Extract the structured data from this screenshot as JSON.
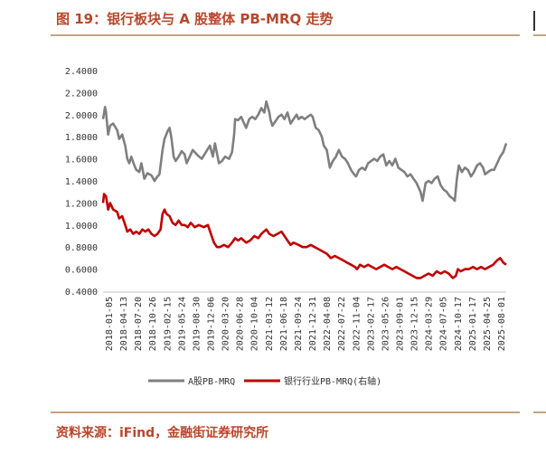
{
  "figure": {
    "title": "图 19：银行板块与 A 股整体 PB-MRQ 走势",
    "source": "资料来源：iFind，金融街证券研究所"
  },
  "chart_data": {
    "type": "line",
    "y_ticks": [
      "2.4000",
      "2.2000",
      "2.0000",
      "1.8000",
      "1.6000",
      "1.4000",
      "1.2000",
      "1.0000",
      "0.8000",
      "0.6000",
      "0.4000"
    ],
    "ylim": [
      0.4,
      2.4
    ],
    "x_range": [
      "2018-01-05",
      "2025-09-05"
    ],
    "x_ticks": [
      "2018-01-05",
      "2018-04-13",
      "2018-07-20",
      "2018-10-26",
      "2019-02-15",
      "2019-05-24",
      "2019-08-30",
      "2019-12-06",
      "2020-03-20",
      "2020-06-28",
      "2020-10-04",
      "2021-03-12",
      "2021-06-18",
      "2021-09-24",
      "2021-12-31",
      "2022-04-08",
      "2022-07-22",
      "2022-11-04",
      "2023-02-17",
      "2023-05-26",
      "2023-09-01",
      "2023-12-15",
      "2024-03-29",
      "2024-07-05",
      "2024-10-17",
      "2025-01-17",
      "2025-04-25",
      "2025-08-01"
    ],
    "grid": false,
    "legend_position": "bottom",
    "series": [
      {
        "name": "A股PB-MRQ",
        "color": "#7f7f7f",
        "points": [
          [
            "2018-01-05",
            1.96
          ],
          [
            "2018-01-19",
            2.07
          ],
          [
            "2018-01-26",
            2.02
          ],
          [
            "2018-02-09",
            1.82
          ],
          [
            "2018-02-23",
            1.9
          ],
          [
            "2018-03-16",
            1.92
          ],
          [
            "2018-04-13",
            1.86
          ],
          [
            "2018-04-27",
            1.78
          ],
          [
            "2018-05-18",
            1.82
          ],
          [
            "2018-06-08",
            1.72
          ],
          [
            "2018-06-22",
            1.6
          ],
          [
            "2018-07-06",
            1.56
          ],
          [
            "2018-07-20",
            1.62
          ],
          [
            "2018-08-10",
            1.54
          ],
          [
            "2018-08-24",
            1.5
          ],
          [
            "2018-09-14",
            1.48
          ],
          [
            "2018-09-28",
            1.56
          ],
          [
            "2018-10-19",
            1.42
          ],
          [
            "2018-11-09",
            1.47
          ],
          [
            "2018-12-07",
            1.45
          ],
          [
            "2018-12-28",
            1.4
          ],
          [
            "2019-01-18",
            1.44
          ],
          [
            "2019-02-01",
            1.46
          ],
          [
            "2019-02-22",
            1.68
          ],
          [
            "2019-03-08",
            1.78
          ],
          [
            "2019-03-29",
            1.85
          ],
          [
            "2019-04-12",
            1.88
          ],
          [
            "2019-04-26",
            1.78
          ],
          [
            "2019-05-10",
            1.62
          ],
          [
            "2019-05-24",
            1.58
          ],
          [
            "2019-06-14",
            1.62
          ],
          [
            "2019-07-05",
            1.67
          ],
          [
            "2019-07-26",
            1.64
          ],
          [
            "2019-08-09",
            1.56
          ],
          [
            "2019-08-30",
            1.62
          ],
          [
            "2019-09-20",
            1.68
          ],
          [
            "2019-10-25",
            1.63
          ],
          [
            "2019-11-22",
            1.6
          ],
          [
            "2019-12-20",
            1.66
          ],
          [
            "2020-01-17",
            1.72
          ],
          [
            "2020-02-07",
            1.62
          ],
          [
            "2020-02-21",
            1.74
          ],
          [
            "2020-03-20",
            1.56
          ],
          [
            "2020-04-10",
            1.58
          ],
          [
            "2020-05-01",
            1.62
          ],
          [
            "2020-05-29",
            1.6
          ],
          [
            "2020-06-19",
            1.66
          ],
          [
            "2020-07-03",
            1.82
          ],
          [
            "2020-07-10",
            1.96
          ],
          [
            "2020-07-31",
            1.95
          ],
          [
            "2020-08-21",
            1.98
          ],
          [
            "2020-09-11",
            1.92
          ],
          [
            "2020-09-25",
            1.88
          ],
          [
            "2020-10-16",
            1.96
          ],
          [
            "2020-11-06",
            1.98
          ],
          [
            "2020-11-27",
            1.96
          ],
          [
            "2020-12-18",
            2.0
          ],
          [
            "2021-01-08",
            2.06
          ],
          [
            "2021-01-29",
            2.02
          ],
          [
            "2021-02-12",
            2.12
          ],
          [
            "2021-03-05",
            2.02
          ],
          [
            "2021-03-12",
            1.96
          ],
          [
            "2021-03-26",
            1.9
          ],
          [
            "2021-04-16",
            1.94
          ],
          [
            "2021-05-07",
            1.98
          ],
          [
            "2021-05-28",
            2.0
          ],
          [
            "2021-06-18",
            1.96
          ],
          [
            "2021-07-09",
            2.02
          ],
          [
            "2021-07-30",
            1.92
          ],
          [
            "2021-08-20",
            1.96
          ],
          [
            "2021-09-10",
            2.0
          ],
          [
            "2021-09-24",
            1.96
          ],
          [
            "2021-10-15",
            1.98
          ],
          [
            "2021-11-05",
            1.96
          ],
          [
            "2021-11-26",
            1.98
          ],
          [
            "2021-12-17",
            2.0
          ],
          [
            "2021-12-31",
            1.98
          ],
          [
            "2022-01-21",
            1.88
          ],
          [
            "2022-02-11",
            1.86
          ],
          [
            "2022-03-04",
            1.8
          ],
          [
            "2022-03-18",
            1.72
          ],
          [
            "2022-04-08",
            1.68
          ],
          [
            "2022-04-29",
            1.52
          ],
          [
            "2022-05-20",
            1.58
          ],
          [
            "2022-06-10",
            1.62
          ],
          [
            "2022-07-01",
            1.68
          ],
          [
            "2022-07-22",
            1.62
          ],
          [
            "2022-08-12",
            1.6
          ],
          [
            "2022-09-02",
            1.56
          ],
          [
            "2022-09-23",
            1.5
          ],
          [
            "2022-10-14",
            1.46
          ],
          [
            "2022-10-28",
            1.44
          ],
          [
            "2022-11-18",
            1.5
          ],
          [
            "2022-12-09",
            1.52
          ],
          [
            "2022-12-30",
            1.5
          ],
          [
            "2023-01-20",
            1.56
          ],
          [
            "2023-02-10",
            1.58
          ],
          [
            "2023-03-03",
            1.6
          ],
          [
            "2023-03-24",
            1.58
          ],
          [
            "2023-04-14",
            1.62
          ],
          [
            "2023-05-05",
            1.64
          ],
          [
            "2023-05-26",
            1.54
          ],
          [
            "2023-06-16",
            1.58
          ],
          [
            "2023-07-07",
            1.54
          ],
          [
            "2023-07-28",
            1.6
          ],
          [
            "2023-08-18",
            1.52
          ],
          [
            "2023-09-08",
            1.5
          ],
          [
            "2023-09-29",
            1.48
          ],
          [
            "2023-10-20",
            1.44
          ],
          [
            "2023-11-10",
            1.46
          ],
          [
            "2023-12-01",
            1.42
          ],
          [
            "2023-12-22",
            1.38
          ],
          [
            "2024-01-19",
            1.3
          ],
          [
            "2024-02-02",
            1.22
          ],
          [
            "2024-02-23",
            1.38
          ],
          [
            "2024-03-15",
            1.4
          ],
          [
            "2024-04-05",
            1.38
          ],
          [
            "2024-04-26",
            1.42
          ],
          [
            "2024-05-17",
            1.44
          ],
          [
            "2024-06-07",
            1.36
          ],
          [
            "2024-06-28",
            1.32
          ],
          [
            "2024-07-19",
            1.3
          ],
          [
            "2024-08-09",
            1.26
          ],
          [
            "2024-08-30",
            1.24
          ],
          [
            "2024-09-13",
            1.22
          ],
          [
            "2024-09-27",
            1.42
          ],
          [
            "2024-10-11",
            1.54
          ],
          [
            "2024-11-01",
            1.48
          ],
          [
            "2024-11-22",
            1.52
          ],
          [
            "2024-12-13",
            1.5
          ],
          [
            "2025-01-03",
            1.44
          ],
          [
            "2025-01-24",
            1.48
          ],
          [
            "2025-02-14",
            1.54
          ],
          [
            "2025-03-07",
            1.56
          ],
          [
            "2025-03-28",
            1.52
          ],
          [
            "2025-04-11",
            1.46
          ],
          [
            "2025-05-02",
            1.48
          ],
          [
            "2025-05-23",
            1.5
          ],
          [
            "2025-06-13",
            1.5
          ],
          [
            "2025-07-04",
            1.56
          ],
          [
            "2025-07-25",
            1.62
          ],
          [
            "2025-08-15",
            1.66
          ],
          [
            "2025-09-05",
            1.74
          ]
        ]
      },
      {
        "name": "银行行业PB-MRQ(右轴)",
        "color": "#c00000",
        "points": [
          [
            "2018-01-05",
            1.2
          ],
          [
            "2018-01-12",
            1.28
          ],
          [
            "2018-01-26",
            1.26
          ],
          [
            "2018-02-09",
            1.14
          ],
          [
            "2018-02-23",
            1.2
          ],
          [
            "2018-03-16",
            1.14
          ],
          [
            "2018-04-13",
            1.12
          ],
          [
            "2018-04-27",
            1.06
          ],
          [
            "2018-05-18",
            1.08
          ],
          [
            "2018-06-08",
            1.0
          ],
          [
            "2018-06-22",
            0.94
          ],
          [
            "2018-07-13",
            0.96
          ],
          [
            "2018-08-03",
            0.92
          ],
          [
            "2018-08-24",
            0.94
          ],
          [
            "2018-09-14",
            0.92
          ],
          [
            "2018-10-05",
            0.96
          ],
          [
            "2018-10-26",
            0.94
          ],
          [
            "2018-11-16",
            0.96
          ],
          [
            "2018-12-07",
            0.92
          ],
          [
            "2018-12-28",
            0.9
          ],
          [
            "2019-01-18",
            0.92
          ],
          [
            "2019-02-08",
            0.96
          ],
          [
            "2019-02-22",
            1.1
          ],
          [
            "2019-03-08",
            1.14
          ],
          [
            "2019-03-22",
            1.1
          ],
          [
            "2019-04-12",
            1.08
          ],
          [
            "2019-05-03",
            1.02
          ],
          [
            "2019-05-24",
            1.0
          ],
          [
            "2019-06-14",
            1.04
          ],
          [
            "2019-07-05",
            1.0
          ],
          [
            "2019-07-26",
            1.0
          ],
          [
            "2019-08-16",
            0.98
          ],
          [
            "2019-09-06",
            1.02
          ],
          [
            "2019-10-04",
            0.98
          ],
          [
            "2019-11-01",
            1.0
          ],
          [
            "2019-12-06",
            0.98
          ],
          [
            "2020-01-03",
            1.0
          ],
          [
            "2020-01-24",
            0.92
          ],
          [
            "2020-02-14",
            0.84
          ],
          [
            "2020-03-06",
            0.8
          ],
          [
            "2020-03-27",
            0.8
          ],
          [
            "2020-04-24",
            0.82
          ],
          [
            "2020-05-22",
            0.8
          ],
          [
            "2020-06-19",
            0.84
          ],
          [
            "2020-07-10",
            0.88
          ],
          [
            "2020-07-31",
            0.86
          ],
          [
            "2020-08-21",
            0.88
          ],
          [
            "2020-09-25",
            0.84
          ],
          [
            "2020-10-23",
            0.86
          ],
          [
            "2020-11-20",
            0.9
          ],
          [
            "2020-12-18",
            0.88
          ],
          [
            "2021-01-08",
            0.92
          ],
          [
            "2021-02-12",
            0.96
          ],
          [
            "2021-03-05",
            0.92
          ],
          [
            "2021-04-02",
            0.9
          ],
          [
            "2021-04-30",
            0.92
          ],
          [
            "2021-05-28",
            0.94
          ],
          [
            "2021-06-18",
            0.9
          ],
          [
            "2021-07-09",
            0.86
          ],
          [
            "2021-07-30",
            0.82
          ],
          [
            "2021-08-20",
            0.84
          ],
          [
            "2021-09-24",
            0.82
          ],
          [
            "2021-10-22",
            0.8
          ],
          [
            "2021-11-19",
            0.8
          ],
          [
            "2021-12-17",
            0.82
          ],
          [
            "2022-01-14",
            0.8
          ],
          [
            "2022-02-11",
            0.78
          ],
          [
            "2022-03-11",
            0.76
          ],
          [
            "2022-04-08",
            0.74
          ],
          [
            "2022-05-06",
            0.7
          ],
          [
            "2022-06-03",
            0.72
          ],
          [
            "2022-07-01",
            0.7
          ],
          [
            "2022-07-29",
            0.68
          ],
          [
            "2022-08-26",
            0.66
          ],
          [
            "2022-09-23",
            0.64
          ],
          [
            "2022-10-21",
            0.62
          ],
          [
            "2022-11-04",
            0.6
          ],
          [
            "2022-11-25",
            0.64
          ],
          [
            "2022-12-23",
            0.62
          ],
          [
            "2023-01-20",
            0.64
          ],
          [
            "2023-02-17",
            0.62
          ],
          [
            "2023-03-17",
            0.6
          ],
          [
            "2023-04-14",
            0.62
          ],
          [
            "2023-05-12",
            0.64
          ],
          [
            "2023-06-09",
            0.62
          ],
          [
            "2023-07-07",
            0.6
          ],
          [
            "2023-08-04",
            0.62
          ],
          [
            "2023-09-01",
            0.6
          ],
          [
            "2023-09-29",
            0.58
          ],
          [
            "2023-10-27",
            0.56
          ],
          [
            "2023-11-24",
            0.54
          ],
          [
            "2023-12-22",
            0.52
          ],
          [
            "2024-01-19",
            0.52
          ],
          [
            "2024-02-16",
            0.54
          ],
          [
            "2024-03-15",
            0.56
          ],
          [
            "2024-04-12",
            0.54
          ],
          [
            "2024-05-10",
            0.58
          ],
          [
            "2024-06-07",
            0.56
          ],
          [
            "2024-07-05",
            0.58
          ],
          [
            "2024-08-02",
            0.56
          ],
          [
            "2024-08-30",
            0.52
          ],
          [
            "2024-09-20",
            0.54
          ],
          [
            "2024-10-04",
            0.6
          ],
          [
            "2024-10-25",
            0.58
          ],
          [
            "2024-11-22",
            0.6
          ],
          [
            "2024-12-20",
            0.6
          ],
          [
            "2025-01-17",
            0.62
          ],
          [
            "2025-02-14",
            0.6
          ],
          [
            "2025-03-14",
            0.62
          ],
          [
            "2025-04-11",
            0.6
          ],
          [
            "2025-05-09",
            0.62
          ],
          [
            "2025-06-06",
            0.64
          ],
          [
            "2025-07-04",
            0.68
          ],
          [
            "2025-07-25",
            0.7
          ],
          [
            "2025-08-15",
            0.66
          ],
          [
            "2025-09-05",
            0.64
          ]
        ]
      }
    ]
  }
}
